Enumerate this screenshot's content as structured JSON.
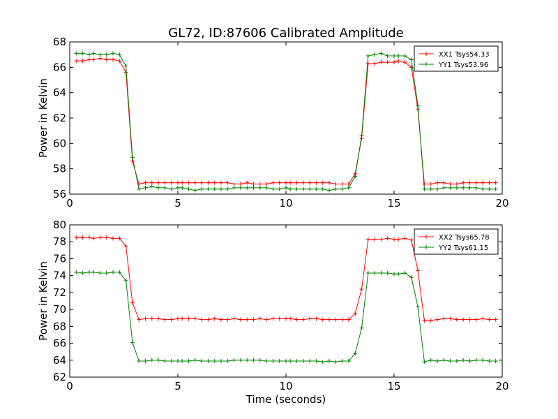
{
  "figure_title": "GL72, ID:87606 Calibrated Amplitude",
  "chart_data": [
    {
      "type": "line",
      "ylabel": "Power in Kelvin",
      "xlabel": "",
      "xlim": [
        0,
        20
      ],
      "ylim": [
        56,
        68
      ],
      "xticks": [
        "0",
        "5",
        "10",
        "15",
        "20"
      ],
      "yticks": [
        "56",
        "58",
        "60",
        "62",
        "64",
        "66",
        "68"
      ],
      "legend_position": "top-right",
      "x": [
        0.3,
        0.6,
        0.9,
        1.1,
        1.4,
        1.7,
        2.0,
        2.3,
        2.6,
        2.9,
        3.2,
        3.5,
        3.8,
        4.1,
        4.4,
        4.7,
        5.0,
        5.2,
        5.5,
        5.8,
        6.1,
        6.4,
        6.7,
        7.0,
        7.3,
        7.6,
        7.9,
        8.2,
        8.5,
        8.8,
        9.1,
        9.4,
        9.7,
        10.0,
        10.2,
        10.5,
        10.8,
        11.1,
        11.4,
        11.7,
        12.0,
        12.3,
        12.6,
        12.9,
        13.2,
        13.5,
        13.8,
        14.1,
        14.4,
        14.7,
        15.0,
        15.2,
        15.5,
        15.8,
        16.1,
        16.4,
        16.7,
        17.0,
        17.3,
        17.6,
        17.9,
        18.2,
        18.5,
        18.8,
        19.1,
        19.4,
        19.7
      ],
      "series": [
        {
          "name": "XX1 Tsys54.33",
          "color": "#ff0000",
          "values": [
            66.5,
            66.5,
            66.6,
            66.6,
            66.7,
            66.6,
            66.6,
            66.5,
            65.6,
            58.6,
            56.8,
            56.9,
            56.9,
            56.9,
            56.9,
            56.9,
            56.9,
            56.9,
            56.9,
            56.9,
            56.9,
            56.9,
            56.9,
            56.9,
            56.9,
            56.8,
            56.8,
            56.9,
            56.8,
            56.8,
            56.8,
            56.9,
            56.9,
            56.9,
            56.9,
            56.9,
            56.9,
            56.9,
            56.9,
            56.9,
            56.9,
            56.8,
            56.8,
            56.8,
            57.6,
            60.4,
            66.3,
            66.3,
            66.4,
            66.4,
            66.4,
            66.5,
            66.4,
            66.0,
            62.7,
            56.8,
            56.8,
            56.9,
            56.9,
            56.8,
            56.8,
            56.9,
            56.9,
            56.9,
            56.9,
            56.9,
            56.9
          ]
        },
        {
          "name": "YY1 Tsys53.96",
          "color": "#008000",
          "values": [
            67.1,
            67.1,
            67.0,
            67.1,
            67.0,
            67.0,
            67.1,
            67.0,
            66.1,
            58.9,
            56.4,
            56.5,
            56.6,
            56.5,
            56.5,
            56.4,
            56.5,
            56.5,
            56.4,
            56.3,
            56.4,
            56.4,
            56.4,
            56.4,
            56.4,
            56.5,
            56.5,
            56.5,
            56.5,
            56.5,
            56.5,
            56.4,
            56.4,
            56.5,
            56.4,
            56.4,
            56.4,
            56.4,
            56.4,
            56.4,
            56.3,
            56.4,
            56.4,
            56.5,
            57.4,
            60.6,
            66.9,
            67.0,
            67.1,
            66.9,
            66.9,
            66.9,
            66.9,
            66.6,
            63.0,
            56.4,
            56.4,
            56.4,
            56.5,
            56.5,
            56.5,
            56.5,
            56.5,
            56.5,
            56.4,
            56.4,
            56.4
          ]
        }
      ]
    },
    {
      "type": "line",
      "ylabel": "Power in Kelvin",
      "xlabel": "Time (seconds)",
      "xlim": [
        0,
        20
      ],
      "ylim": [
        62,
        80
      ],
      "xticks": [
        "0",
        "5",
        "10",
        "15",
        "20"
      ],
      "yticks": [
        "62",
        "64",
        "66",
        "68",
        "70",
        "72",
        "74",
        "76",
        "78",
        "80"
      ],
      "legend_position": "top-right",
      "x": [
        0.3,
        0.6,
        0.9,
        1.1,
        1.4,
        1.7,
        2.0,
        2.3,
        2.6,
        2.9,
        3.2,
        3.5,
        3.8,
        4.1,
        4.4,
        4.7,
        5.0,
        5.2,
        5.5,
        5.8,
        6.1,
        6.4,
        6.7,
        7.0,
        7.3,
        7.6,
        7.9,
        8.2,
        8.5,
        8.8,
        9.1,
        9.4,
        9.7,
        10.0,
        10.2,
        10.5,
        10.8,
        11.1,
        11.4,
        11.7,
        12.0,
        12.3,
        12.6,
        12.9,
        13.2,
        13.5,
        13.8,
        14.1,
        14.4,
        14.7,
        15.0,
        15.2,
        15.5,
        15.8,
        16.1,
        16.4,
        16.7,
        17.0,
        17.3,
        17.6,
        17.9,
        18.2,
        18.5,
        18.8,
        19.1,
        19.4,
        19.7
      ],
      "series": [
        {
          "name": "XX2 Tsys65.78",
          "color": "#ff0000",
          "values": [
            78.5,
            78.5,
            78.5,
            78.4,
            78.5,
            78.5,
            78.4,
            78.4,
            77.5,
            70.8,
            68.8,
            68.9,
            68.9,
            68.9,
            68.8,
            68.8,
            68.9,
            68.9,
            68.9,
            68.9,
            68.8,
            68.8,
            68.9,
            68.8,
            68.8,
            68.9,
            68.8,
            68.8,
            68.8,
            68.9,
            68.8,
            68.9,
            68.9,
            68.9,
            68.9,
            68.8,
            68.8,
            68.9,
            68.9,
            68.8,
            68.8,
            68.8,
            68.8,
            68.8,
            69.5,
            72.4,
            78.3,
            78.3,
            78.3,
            78.4,
            78.3,
            78.3,
            78.4,
            78.2,
            74.6,
            68.7,
            68.7,
            68.8,
            68.9,
            68.9,
            68.8,
            68.8,
            68.8,
            68.8,
            68.9,
            68.8,
            68.8
          ]
        },
        {
          "name": "YY2 Tsys61.15",
          "color": "#008000",
          "values": [
            74.4,
            74.3,
            74.4,
            74.4,
            74.3,
            74.3,
            74.4,
            74.4,
            73.4,
            66.1,
            63.9,
            63.9,
            64.0,
            64.0,
            63.9,
            63.9,
            63.9,
            63.9,
            63.9,
            64.0,
            63.9,
            63.9,
            63.9,
            63.9,
            63.9,
            64.0,
            64.0,
            64.0,
            64.0,
            64.0,
            63.9,
            63.9,
            63.9,
            63.9,
            63.9,
            63.9,
            63.9,
            63.9,
            63.9,
            63.8,
            63.9,
            63.8,
            63.9,
            63.9,
            64.8,
            67.8,
            74.3,
            74.3,
            74.3,
            74.3,
            74.2,
            74.2,
            74.3,
            73.8,
            70.3,
            63.8,
            64.0,
            63.9,
            64.0,
            63.9,
            63.9,
            64.0,
            63.9,
            64.0,
            64.0,
            63.9,
            63.9
          ]
        }
      ]
    }
  ]
}
